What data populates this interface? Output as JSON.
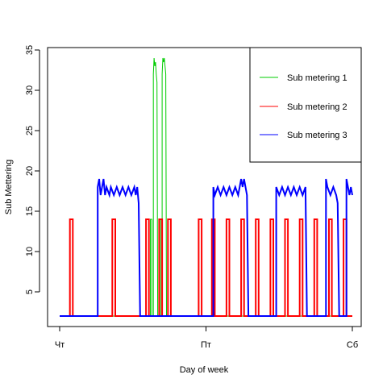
{
  "chart_data": {
    "type": "line",
    "title": "",
    "xlabel": "Day of week",
    "ylabel": "Sub Mettering",
    "x_ticks": [
      "Чт",
      "Пт",
      "Сб"
    ],
    "x_range_days": [
      0,
      2
    ],
    "y_ticks": [
      5,
      10,
      15,
      20,
      25,
      30,
      35
    ],
    "ylim": [
      0.7,
      35.3
    ],
    "grid": false,
    "legend_position": "top-right",
    "series": [
      {
        "name": "Sub metering 1",
        "color": "#00cc00",
        "points": [
          [
            0.0,
            2
          ],
          [
            0.62,
            2
          ],
          [
            0.62,
            14
          ],
          [
            0.63,
            14
          ],
          [
            0.63,
            2
          ],
          [
            0.64,
            2
          ],
          [
            0.64,
            32
          ],
          [
            0.645,
            34
          ],
          [
            0.65,
            33
          ],
          [
            0.655,
            33.5
          ],
          [
            0.66,
            32
          ],
          [
            0.665,
            31
          ],
          [
            0.67,
            2
          ],
          [
            0.68,
            2
          ],
          [
            0.68,
            14
          ],
          [
            0.69,
            14
          ],
          [
            0.69,
            2
          ],
          [
            0.7,
            2
          ],
          [
            0.7,
            32
          ],
          [
            0.705,
            34
          ],
          [
            0.71,
            33.5
          ],
          [
            0.715,
            34
          ],
          [
            0.72,
            33
          ],
          [
            0.725,
            32
          ],
          [
            0.73,
            2
          ],
          [
            2.0,
            2
          ]
        ]
      },
      {
        "name": "Sub metering 2",
        "color": "#ff0000",
        "cycles": [
          [
            0.07,
            0.09
          ],
          [
            0.36,
            0.38
          ],
          [
            0.59,
            0.61
          ],
          [
            0.68,
            0.7
          ],
          [
            0.74,
            0.76
          ],
          [
            0.95,
            0.97
          ],
          [
            1.04,
            1.06
          ],
          [
            1.14,
            1.16
          ],
          [
            1.24,
            1.26
          ],
          [
            1.34,
            1.36
          ],
          [
            1.44,
            1.46
          ],
          [
            1.54,
            1.56
          ],
          [
            1.64,
            1.66
          ],
          [
            1.74,
            1.76
          ],
          [
            1.84,
            1.86
          ],
          [
            1.94,
            1.96
          ]
        ],
        "baseline": 2,
        "peak": 14
      },
      {
        "name": "Sub metering 3",
        "color": "#0000ff",
        "points": [
          [
            0.0,
            2
          ],
          [
            0.26,
            2
          ],
          [
            0.26,
            18
          ],
          [
            0.27,
            19
          ],
          [
            0.28,
            17
          ],
          [
            0.29,
            18
          ],
          [
            0.3,
            19
          ],
          [
            0.31,
            17
          ],
          [
            0.32,
            18
          ],
          [
            0.34,
            17
          ],
          [
            0.35,
            18
          ],
          [
            0.37,
            17
          ],
          [
            0.39,
            18
          ],
          [
            0.41,
            17
          ],
          [
            0.43,
            18
          ],
          [
            0.45,
            17
          ],
          [
            0.47,
            18
          ],
          [
            0.49,
            17
          ],
          [
            0.51,
            18
          ],
          [
            0.52,
            17
          ],
          [
            0.53,
            18
          ],
          [
            0.54,
            16
          ],
          [
            0.55,
            2
          ],
          [
            0.62,
            2
          ],
          [
            1.05,
            2
          ],
          [
            1.05,
            18
          ],
          [
            1.06,
            17
          ],
          [
            1.08,
            18
          ],
          [
            1.1,
            17
          ],
          [
            1.12,
            18
          ],
          [
            1.14,
            17
          ],
          [
            1.16,
            18
          ],
          [
            1.18,
            17
          ],
          [
            1.2,
            18
          ],
          [
            1.22,
            17
          ],
          [
            1.24,
            19
          ],
          [
            1.25,
            18
          ],
          [
            1.26,
            19
          ],
          [
            1.27,
            18
          ],
          [
            1.28,
            17
          ],
          [
            1.29,
            2
          ],
          [
            1.48,
            2
          ],
          [
            1.48,
            18
          ],
          [
            1.5,
            17
          ],
          [
            1.52,
            18
          ],
          [
            1.54,
            17
          ],
          [
            1.56,
            18
          ],
          [
            1.58,
            17
          ],
          [
            1.6,
            18
          ],
          [
            1.62,
            17
          ],
          [
            1.64,
            18
          ],
          [
            1.66,
            17
          ],
          [
            1.68,
            18
          ],
          [
            1.69,
            2
          ],
          [
            1.82,
            2
          ],
          [
            1.82,
            19
          ],
          [
            1.83,
            18
          ],
          [
            1.85,
            17
          ],
          [
            1.87,
            18
          ],
          [
            1.89,
            17
          ],
          [
            1.9,
            16
          ],
          [
            1.91,
            2
          ],
          [
            1.96,
            2
          ],
          [
            1.96,
            19
          ],
          [
            1.97,
            18
          ],
          [
            1.98,
            17
          ],
          [
            1.99,
            18
          ],
          [
            2.0,
            17
          ]
        ]
      }
    ]
  }
}
